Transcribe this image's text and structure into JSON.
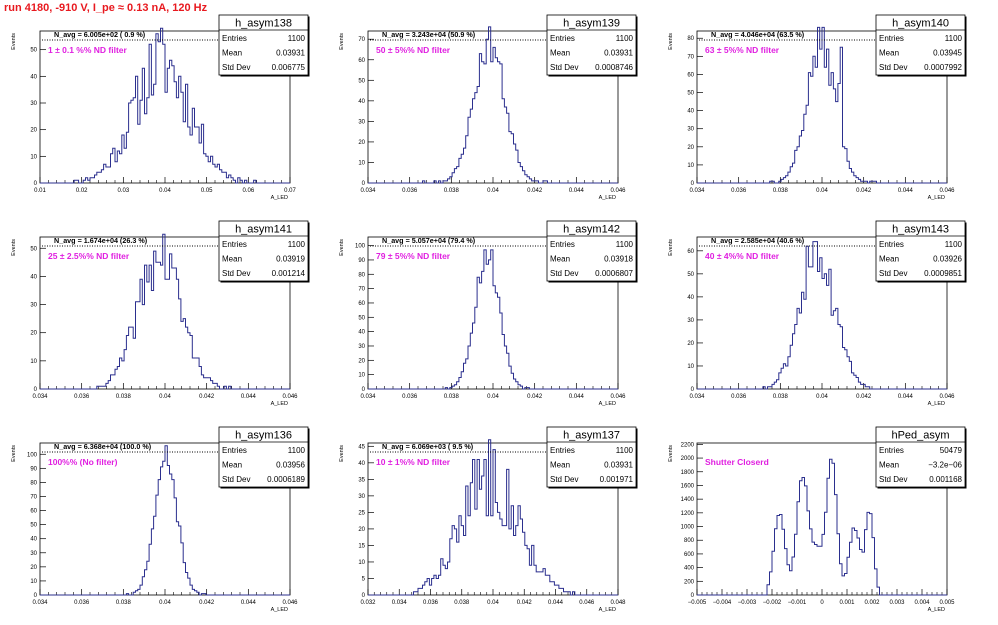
{
  "page_title": "run 4180,  -910 V, I_pe ≈ 0.13 nA, 120 Hz",
  "stat_labels": {
    "entries": "Entries",
    "mean": "Mean",
    "std": "Std Dev"
  },
  "y_axis_label": "Events",
  "x_axis_label": "A_LED",
  "colors": {
    "histogram": "#2b2f8e",
    "annotation": "#e020e0",
    "title": "#e8191f",
    "axis": "#000000"
  },
  "chart_data": [
    {
      "type": "histogram",
      "name": "h_asym138",
      "entries": "1100",
      "mean": "0.03931",
      "std_dev": "0.006775",
      "navg": "N_avg = 6.005e+02 ( 0.9 %)",
      "annotation": "1 ± 0.1 %% ND filter",
      "xlim": [
        0.01,
        0.07
      ],
      "ylim": [
        0,
        57
      ],
      "xticks": [
        "0.01",
        "0.02",
        "0.03",
        "0.04",
        "0.05",
        "0.06",
        "0.07"
      ],
      "yticks": [
        "0",
        "10",
        "20",
        "30",
        "40",
        "50"
      ],
      "gen": {
        "seed": 11,
        "center": 0.0393,
        "sigma": 0.0068,
        "peak": 45,
        "lo": 0.018,
        "hi": 0.062,
        "nbins": 110,
        "noise": 0.35,
        "spikes": [
          [
            0.0393,
            58
          ]
        ]
      }
    },
    {
      "type": "histogram",
      "name": "h_asym139",
      "entries": "1100",
      "mean": "0.03931",
      "std_dev": "0.0008746",
      "navg": "N_avg = 3.243e+04 (50.9 %)",
      "annotation": "50 ± 5%% ND filter",
      "xlim": [
        0.0325,
        0.0465
      ],
      "ylim": [
        0,
        74
      ],
      "xticks": [
        "0.034",
        "0.036",
        "0.038",
        "0.04",
        "0.042",
        "0.044",
        "0.046"
      ],
      "yticks": [
        "0",
        "10",
        "20",
        "30",
        "40",
        "50",
        "60",
        "70"
      ],
      "gen": {
        "seed": 23,
        "center": 0.0393,
        "sigma": 0.00087,
        "peak": 68,
        "lo": 0.0355,
        "hi": 0.0426,
        "nbins": 110,
        "noise": 0.14,
        "spikes": []
      }
    },
    {
      "type": "histogram",
      "name": "h_asym140",
      "entries": "1100",
      "mean": "0.03945",
      "std_dev": "0.0007992",
      "navg": "N_avg = 4.046e+04 (63.5 %)",
      "annotation": "63 ± 5%% ND filter",
      "xlim": [
        0.0325,
        0.0465
      ],
      "ylim": [
        0,
        84
      ],
      "xticks": [
        "0.034",
        "0.036",
        "0.038",
        "0.04",
        "0.042",
        "0.044",
        "0.046"
      ],
      "yticks": [
        "0",
        "10",
        "20",
        "30",
        "40",
        "50",
        "60",
        "70",
        "80"
      ],
      "gen": {
        "seed": 37,
        "center": 0.03945,
        "sigma": 0.0008,
        "peak": 76,
        "lo": 0.0365,
        "hi": 0.0426,
        "nbins": 110,
        "noise": 0.15,
        "spikes": [
          [
            0.0404,
            55
          ],
          [
            0.0406,
            75
          ]
        ]
      }
    },
    {
      "type": "histogram",
      "name": "h_asym141",
      "entries": "1100",
      "mean": "0.03919",
      "std_dev": "0.001214",
      "navg": "N_avg = 1.674e+04 (26.3 %)",
      "annotation": "25 ± 2.5%% ND filter",
      "xlim": [
        0.0325,
        0.0465
      ],
      "ylim": [
        0,
        54
      ],
      "xticks": [
        "0.034",
        "0.036",
        "0.038",
        "0.04",
        "0.042",
        "0.044",
        "0.046"
      ],
      "yticks": [
        "0",
        "10",
        "20",
        "30",
        "40",
        "50"
      ],
      "gen": {
        "seed": 41,
        "center": 0.0392,
        "sigma": 0.00121,
        "peak": 47,
        "lo": 0.0355,
        "hi": 0.0432,
        "nbins": 110,
        "noise": 0.25,
        "spikes": [
          [
            0.0398,
            48
          ]
        ]
      }
    },
    {
      "type": "histogram",
      "name": "h_asym142",
      "entries": "1100",
      "mean": "0.03918",
      "std_dev": "0.0006807",
      "navg": "N_avg = 5.057e+04 (79.4 %)",
      "annotation": "79 ± 5%% ND filter",
      "xlim": [
        0.0325,
        0.0465
      ],
      "ylim": [
        0,
        106
      ],
      "xticks": [
        "0.034",
        "0.036",
        "0.038",
        "0.04",
        "0.042",
        "0.044",
        "0.046"
      ],
      "yticks": [
        "0",
        "10",
        "20",
        "30",
        "40",
        "50",
        "60",
        "70",
        "80",
        "90",
        "100"
      ],
      "gen": {
        "seed": 53,
        "center": 0.03918,
        "sigma": 0.00068,
        "peak": 95,
        "lo": 0.0368,
        "hi": 0.0415,
        "nbins": 110,
        "noise": 0.12,
        "spikes": []
      }
    },
    {
      "type": "histogram",
      "name": "h_asym143",
      "entries": "1100",
      "mean": "0.03926",
      "std_dev": "0.0009851",
      "navg": "N_avg = 2.585e+04 (40.6 %)",
      "annotation": "40 ± 4%% ND filter",
      "xlim": [
        0.0325,
        0.0465
      ],
      "ylim": [
        0,
        66
      ],
      "xticks": [
        "0.034",
        "0.036",
        "0.038",
        "0.04",
        "0.042",
        "0.044",
        "0.046"
      ],
      "yticks": [
        "0",
        "10",
        "20",
        "30",
        "40",
        "50",
        "60"
      ],
      "gen": {
        "seed": 61,
        "center": 0.03926,
        "sigma": 0.00098,
        "peak": 58,
        "lo": 0.036,
        "hi": 0.0425,
        "nbins": 110,
        "noise": 0.18,
        "spikes": [
          [
            0.0387,
            62
          ],
          [
            0.0401,
            32
          ]
        ]
      }
    },
    {
      "type": "histogram",
      "name": "h_asym136",
      "entries": "1100",
      "mean": "0.03956",
      "std_dev": "0.0006189",
      "navg": "N_avg = 6.368e+04 (100.0 %)",
      "annotation": "100%% (No filter)",
      "xlim": [
        0.0325,
        0.0465
      ],
      "ylim": [
        0,
        108
      ],
      "xticks": [
        "0.034",
        "0.036",
        "0.038",
        "0.04",
        "0.042",
        "0.044",
        "0.046"
      ],
      "yticks": [
        "0",
        "10",
        "20",
        "30",
        "40",
        "50",
        "60",
        "70",
        "80",
        "90",
        "100"
      ],
      "gen": {
        "seed": 71,
        "center": 0.03956,
        "sigma": 0.00062,
        "peak": 97,
        "lo": 0.0372,
        "hi": 0.0418,
        "nbins": 110,
        "noise": 0.1,
        "spikes": []
      }
    },
    {
      "type": "histogram",
      "name": "h_asym137",
      "entries": "1100",
      "mean": "0.03931",
      "std_dev": "0.001971",
      "navg": "N_avg = 6.069e+03 ( 9.5 %)",
      "annotation": "10 ± 1%% ND filter",
      "xlim": [
        0.031,
        0.048
      ],
      "ylim": [
        0,
        46
      ],
      "xticks": [
        "0.032",
        "0.034",
        "0.036",
        "0.038",
        "0.04",
        "0.042",
        "0.044",
        "0.046",
        "0.048"
      ],
      "yticks": [
        "0",
        "5",
        "10",
        "15",
        "20",
        "25",
        "30",
        "35",
        "40",
        "45"
      ],
      "gen": {
        "seed": 83,
        "center": 0.0393,
        "sigma": 0.00197,
        "peak": 36,
        "lo": 0.0335,
        "hi": 0.0455,
        "nbins": 110,
        "noise": 0.35,
        "spikes": [
          [
            0.0396,
            44
          ],
          [
            0.0385,
            41
          ]
        ]
      }
    },
    {
      "type": "histogram",
      "name": "hPed_asym",
      "entries": "50479",
      "mean": "−3.2e−06",
      "std_dev": "0.001168",
      "navg": "",
      "annotation": "Shutter Closerd",
      "xlim": [
        -0.005,
        0.005
      ],
      "ylim": [
        0,
        2220
      ],
      "xticks": [
        "−0.005",
        "−0.004",
        "−0.003",
        "−0.002",
        "−0.001",
        "0",
        "0.001",
        "0.002",
        "0.003",
        "0.004",
        "0.005"
      ],
      "yticks": [
        "0",
        "200",
        "400",
        "600",
        "800",
        "1000",
        "1200",
        "1400",
        "1600",
        "1800",
        "2000",
        "2200"
      ],
      "gen": {
        "seed": 97,
        "center": 0,
        "sigma": 0,
        "peak": 0,
        "lo": -0.0022,
        "hi": 0.0023,
        "nbins": 100,
        "noise": 0.05,
        "spikes": [],
        "multi": [
          [
            -0.0017,
            0.00022,
            1250
          ],
          [
            -0.0008,
            0.00022,
            1700
          ],
          [
            0.0004,
            0.0002,
            2000
          ],
          [
            -0.0002,
            0.0003,
            650
          ],
          [
            0.0013,
            0.00022,
            1000
          ],
          [
            0.0019,
            0.00016,
            1250
          ]
        ]
      }
    }
  ]
}
